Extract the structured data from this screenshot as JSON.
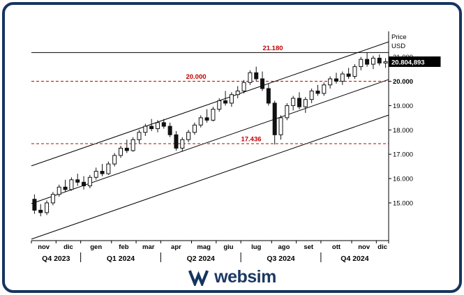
{
  "brand": {
    "name": "websim",
    "color": "#16355e"
  },
  "chart_data": {
    "type": "candlestick",
    "axis_title_lines": [
      "Price",
      "USD"
    ],
    "unit": "thousands",
    "y_range": [
      13.45,
      22.05
    ],
    "y_ticks": [
      {
        "label": "21.000",
        "value": 21.0
      },
      {
        "label": "20.000",
        "value": 20.0,
        "bold": true
      },
      {
        "label": "19.000",
        "value": 19.0
      },
      {
        "label": "18.000",
        "value": 18.0
      },
      {
        "label": "17.000",
        "value": 17.0
      },
      {
        "label": "16.000",
        "value": 16.0
      },
      {
        "label": "15.000",
        "value": 15.0
      }
    ],
    "last_price": {
      "display": "20.804,893",
      "value": 20.804893
    },
    "levels": [
      {
        "label": "21.180",
        "value": 21.18,
        "line": "solid",
        "line_color": "#000000",
        "label_color": "#c00000"
      },
      {
        "label": "20.000",
        "value": 20.0,
        "line": "dashed",
        "line_color": "#c00000",
        "label_color": "#c00000"
      },
      {
        "label": "17.436",
        "value": 17.436,
        "line": "dashed",
        "line_color": "#c00000",
        "label_color": "#c00000"
      }
    ],
    "trend_channel": [
      {
        "price_left": 16.52,
        "price_right": 21.62
      },
      {
        "price_left": 14.97,
        "price_right": 20.07
      },
      {
        "price_left": 13.51,
        "price_right": 18.61
      }
    ],
    "months": [
      {
        "label": "nov",
        "start": 0
      },
      {
        "label": "dic",
        "start": 4
      },
      {
        "label": "gen",
        "start": 8
      },
      {
        "label": "feb",
        "start": 13
      },
      {
        "label": "mar",
        "start": 17
      },
      {
        "label": "apr",
        "start": 21
      },
      {
        "label": "mag",
        "start": 26
      },
      {
        "label": "giu",
        "start": 30
      },
      {
        "label": "lug",
        "start": 34
      },
      {
        "label": "ago",
        "start": 39
      },
      {
        "label": "set",
        "start": 43
      },
      {
        "label": "ott",
        "start": 47
      },
      {
        "label": "nov",
        "start": 52
      },
      {
        "label": "dic",
        "start": 56
      }
    ],
    "quarters": [
      {
        "label": "Q4 2023",
        "start": 0,
        "end": 8
      },
      {
        "label": "Q1 2024",
        "start": 8,
        "end": 21
      },
      {
        "label": "Q2 2024",
        "start": 21,
        "end": 34
      },
      {
        "label": "Q3 2024",
        "start": 34,
        "end": 47
      },
      {
        "label": "Q4 2024",
        "start": 47,
        "end": 58
      }
    ],
    "candles_ohlc": [
      [
        15.15,
        15.35,
        14.55,
        14.7
      ],
      [
        14.7,
        14.95,
        14.45,
        14.6
      ],
      [
        14.6,
        15.1,
        14.5,
        15.0
      ],
      [
        15.0,
        15.45,
        14.9,
        15.35
      ],
      [
        15.35,
        15.75,
        15.25,
        15.65
      ],
      [
        15.65,
        15.95,
        15.45,
        15.55
      ],
      [
        15.55,
        16.05,
        15.5,
        15.95
      ],
      [
        15.95,
        16.2,
        15.7,
        15.85
      ],
      [
        15.85,
        16.1,
        15.55,
        15.7
      ],
      [
        15.7,
        16.15,
        15.6,
        16.05
      ],
      [
        16.05,
        16.45,
        15.95,
        16.3
      ],
      [
        16.3,
        16.6,
        16.1,
        16.2
      ],
      [
        16.2,
        16.7,
        16.15,
        16.6
      ],
      [
        16.6,
        17.05,
        16.5,
        16.95
      ],
      [
        16.95,
        17.35,
        16.85,
        17.25
      ],
      [
        17.25,
        17.6,
        17.05,
        17.15
      ],
      [
        17.15,
        17.7,
        17.1,
        17.6
      ],
      [
        17.6,
        18.0,
        17.45,
        17.9
      ],
      [
        17.9,
        18.25,
        17.75,
        18.15
      ],
      [
        18.15,
        18.45,
        17.95,
        18.05
      ],
      [
        18.05,
        18.4,
        17.9,
        18.3
      ],
      [
        18.3,
        18.45,
        18.05,
        18.15
      ],
      [
        18.15,
        18.3,
        17.7,
        17.8
      ],
      [
        17.8,
        17.95,
        17.15,
        17.25
      ],
      [
        17.25,
        17.7,
        17.1,
        17.6
      ],
      [
        17.6,
        18.0,
        17.5,
        17.9
      ],
      [
        17.9,
        18.3,
        17.8,
        18.2
      ],
      [
        18.2,
        18.6,
        18.1,
        18.5
      ],
      [
        18.5,
        18.85,
        18.3,
        18.4
      ],
      [
        18.4,
        18.95,
        18.35,
        18.85
      ],
      [
        18.85,
        19.3,
        18.75,
        19.2
      ],
      [
        19.2,
        19.6,
        19.0,
        19.1
      ],
      [
        19.1,
        19.55,
        18.95,
        19.45
      ],
      [
        19.45,
        19.8,
        19.3,
        19.6
      ],
      [
        19.6,
        20.05,
        19.5,
        19.95
      ],
      [
        19.95,
        20.45,
        19.85,
        20.35
      ],
      [
        20.35,
        20.6,
        20.0,
        20.1
      ],
      [
        20.1,
        20.4,
        19.6,
        19.7
      ],
      [
        19.7,
        19.9,
        19.0,
        19.1
      ],
      [
        19.1,
        19.2,
        17.4,
        17.8
      ],
      [
        17.8,
        18.6,
        17.6,
        18.5
      ],
      [
        18.5,
        19.1,
        18.4,
        19.0
      ],
      [
        19.0,
        19.4,
        18.8,
        19.3
      ],
      [
        19.3,
        19.55,
        18.85,
        18.95
      ],
      [
        18.95,
        19.35,
        18.7,
        19.25
      ],
      [
        19.25,
        19.7,
        19.1,
        19.6
      ],
      [
        19.6,
        19.85,
        19.4,
        19.5
      ],
      [
        19.5,
        19.95,
        19.4,
        19.85
      ],
      [
        19.85,
        20.2,
        19.7,
        20.1
      ],
      [
        20.1,
        20.35,
        19.9,
        20.0
      ],
      [
        20.0,
        20.4,
        19.85,
        20.3
      ],
      [
        20.3,
        20.55,
        20.1,
        20.2
      ],
      [
        20.2,
        20.7,
        20.1,
        20.6
      ],
      [
        20.6,
        21.0,
        20.45,
        20.9
      ],
      [
        20.9,
        21.18,
        20.6,
        20.7
      ],
      [
        20.7,
        21.05,
        20.5,
        20.95
      ],
      [
        20.95,
        21.1,
        20.65,
        20.75
      ],
      [
        20.75,
        20.95,
        20.55,
        20.805
      ]
    ]
  }
}
